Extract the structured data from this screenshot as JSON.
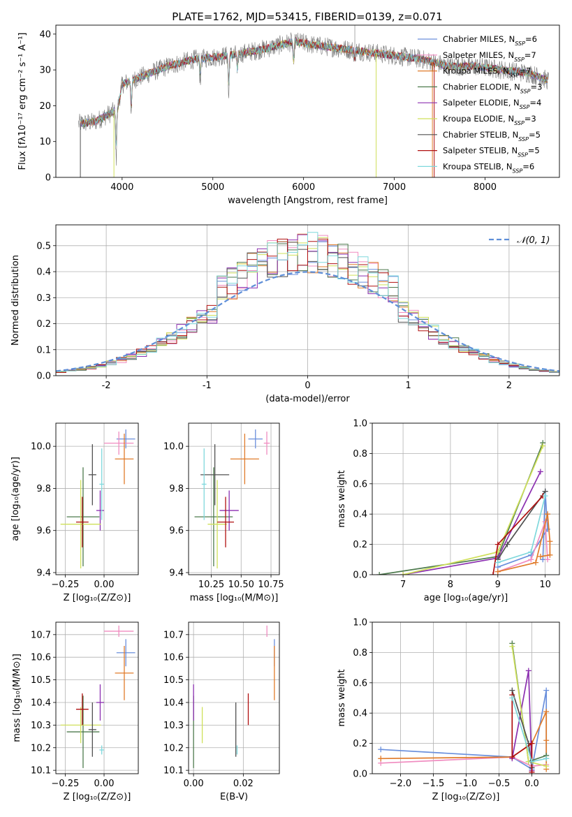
{
  "figure": {
    "title": "PLATE=1762, MJD=53415, FIBERID=0139, z=0.071"
  },
  "colors": {
    "chabrier_miles": "#6a8fdc",
    "salpeter_miles": "#f08cc0",
    "kroupa_miles": "#e07b2a",
    "chabrier_elodie": "#4d7a4d",
    "salpeter_elodie": "#8b2fb0",
    "kroupa_elodie": "#cfe05a",
    "chabrier_stelib": "#505050",
    "salpeter_stelib": "#b01010",
    "kroupa_stelib": "#7fd8dc",
    "normal_curve": "#5f8fd8",
    "grid": "#b0b0b0"
  },
  "chart_data": [
    {
      "id": "spectrum",
      "type": "line",
      "xlabel": "wavelength [Angstrom, rest frame]",
      "ylabel": "Flux [fλ10⁻¹⁷ erg cm⁻² s⁻¹ A⁻¹]",
      "xlim": [
        3270,
        8820
      ],
      "ylim": [
        0,
        42.5
      ],
      "xticks": [
        4000,
        5000,
        6000,
        7000,
        8000
      ],
      "yticks": [
        0,
        10,
        20,
        30,
        40
      ],
      "grid": false,
      "legend_loc": "upper right",
      "legend": [
        {
          "label": "Chabrier MILES, N_SSP=6",
          "base": "Chabrier MILES, N",
          "sub": "SSP",
          "tail": "=6",
          "color_key": "chabrier_miles"
        },
        {
          "label": "Salpeter MILES, N_SSP=7",
          "base": "Salpeter MILES, N",
          "sub": "SSP",
          "tail": "=7",
          "color_key": "salpeter_miles"
        },
        {
          "label": "Kroupa MILES, N_SSP=7",
          "base": "Kroupa MILES, N",
          "sub": "SSP",
          "tail": "=7",
          "color_key": "kroupa_miles"
        },
        {
          "label": "Chabrier ELODIE, N_SSP=3",
          "base": "Chabrier ELODIE, N",
          "sub": "SSP",
          "tail": "=3",
          "color_key": "chabrier_elodie"
        },
        {
          "label": "Salpeter ELODIE, N_SSP=4",
          "base": "Salpeter ELODIE, N",
          "sub": "SSP",
          "tail": "=4",
          "color_key": "salpeter_elodie"
        },
        {
          "label": "Kroupa ELODIE, N_SSP=3",
          "base": "Kroupa ELODIE, N",
          "sub": "SSP",
          "tail": "=3",
          "color_key": "kroupa_elodie"
        },
        {
          "label": "Chabrier STELIB, N_SSP=5",
          "base": "Chabrier STELIB, N",
          "sub": "SSP",
          "tail": "=5",
          "color_key": "chabrier_stelib"
        },
        {
          "label": "Salpeter STELIB, N_SSP=5",
          "base": "Salpeter STELIB, N",
          "sub": "SSP",
          "tail": "=5",
          "color_key": "salpeter_stelib"
        },
        {
          "label": "Kroupa STELIB, N_SSP=6",
          "base": "Kroupa STELIB, N",
          "sub": "SSP",
          "tail": "=6",
          "color_key": "kroupa_stelib"
        }
      ],
      "continuum": [
        [
          3520,
          15
        ],
        [
          3700,
          15.5
        ],
        [
          3950,
          19
        ],
        [
          4000,
          26
        ],
        [
          4200,
          28
        ],
        [
          4500,
          31
        ],
        [
          4800,
          33
        ],
        [
          5000,
          33.5
        ],
        [
          5300,
          34.5
        ],
        [
          5600,
          36
        ],
        [
          5900,
          38
        ],
        [
          6100,
          37
        ],
        [
          6400,
          36
        ],
        [
          6700,
          35
        ],
        [
          7000,
          34
        ],
        [
          7300,
          33
        ],
        [
          7600,
          31
        ],
        [
          7900,
          31
        ],
        [
          8200,
          30
        ],
        [
          8500,
          29
        ],
        [
          8700,
          27
        ]
      ],
      "absorption_features": [
        [
          3934,
          14
        ],
        [
          4102,
          10
        ],
        [
          4861,
          6
        ],
        [
          5175,
          12
        ],
        [
          5270,
          6
        ],
        [
          5890,
          8
        ],
        [
          6563,
          3
        ]
      ],
      "dropouts": [
        [
          3540,
          "chabrier_stelib"
        ],
        [
          3910,
          "kroupa_elodie"
        ],
        [
          6800,
          "kroupa_elodie"
        ],
        [
          7420,
          "kroupa_miles"
        ],
        [
          7440,
          "salpeter_stelib"
        ]
      ],
      "spike": 6565
    },
    {
      "id": "residuals",
      "type": "histogram",
      "xlabel": "(data-model)/error",
      "ylabel": "Normed distribution",
      "xlim": [
        -2.5,
        2.5
      ],
      "ylim": [
        0,
        0.58
      ],
      "xticks": [
        -2,
        -1,
        0,
        1,
        2
      ],
      "yticks": [
        0.0,
        0.1,
        0.2,
        0.3,
        0.4,
        0.5
      ],
      "ytick_labels": [
        "0.0",
        "0.1",
        "0.2",
        "0.3",
        "0.4",
        "0.5"
      ],
      "grid": true,
      "legend_loc": "upper right",
      "legend_label": "𝒩(0, 1)",
      "bin_width": 0.1,
      "curve": "standard normal density, dashed"
    },
    {
      "id": "z-age",
      "type": "scatter",
      "xlabel": "Z [log₁₀(Z/Z⊙)]",
      "ylabel": "age  [log₁₀(age/yr)]",
      "xlim": [
        -0.31,
        0.22
      ],
      "ylim": [
        9.39,
        10.11
      ],
      "xticks": [
        -0.25,
        0.0
      ],
      "xtick_labels": [
        "−0.25",
        "0.00"
      ],
      "yticks": [
        9.4,
        9.6,
        9.8,
        10.0
      ],
      "ytick_labels": [
        "9.4",
        "9.6",
        "9.8",
        "10.0"
      ],
      "grid": true
    },
    {
      "id": "mass-age",
      "type": "scatter",
      "xlabel": "mass [log₁₀(M/M⊙)]",
      "xlim": [
        10.06,
        10.82
      ],
      "ylim": [
        9.39,
        10.11
      ],
      "xticks": [
        10.25,
        10.5,
        10.75
      ],
      "xtick_labels": [
        "10.25",
        "10.50",
        "10.75"
      ],
      "yticks": [
        9.4,
        9.6,
        9.8,
        10.0
      ],
      "ytick_labels": [
        "9.4",
        "9.6",
        "9.8",
        "10.0"
      ],
      "grid": true
    },
    {
      "id": "age-weight",
      "type": "line",
      "xlabel": "age  [log₁₀(age/yr)]",
      "ylabel": "mass weight",
      "xlim": [
        6.35,
        10.3
      ],
      "ylim": [
        0,
        1.0
      ],
      "xticks": [
        7,
        8,
        9,
        10
      ],
      "yticks": [
        0.0,
        0.2,
        0.4,
        0.6,
        0.8,
        1.0
      ],
      "ytick_labels": [
        "0.0",
        "0.2",
        "0.4",
        "0.6",
        "0.8",
        "1.0"
      ],
      "grid": true
    },
    {
      "id": "z-mass",
      "type": "scatter",
      "xlabel": "Z [log₁₀(Z/Z⊙)]",
      "ylabel": "mass [log₁₀(M/M⊙)]",
      "xlim": [
        -0.31,
        0.22
      ],
      "ylim": [
        10.085,
        10.755
      ],
      "xticks": [
        -0.25,
        0.0
      ],
      "xtick_labels": [
        "−0.25",
        "0.00"
      ],
      "yticks": [
        10.1,
        10.2,
        10.3,
        10.4,
        10.5,
        10.6,
        10.7
      ],
      "ytick_labels": [
        "10.1",
        "10.2",
        "10.3",
        "10.4",
        "10.5",
        "10.6",
        "10.7"
      ],
      "grid": true
    },
    {
      "id": "ebv-mass",
      "type": "scatter",
      "xlabel": "E(B-V)",
      "xlim": [
        -0.002,
        0.0345
      ],
      "ylim": [
        10.085,
        10.755
      ],
      "xticks": [
        0.0,
        0.02
      ],
      "xtick_labels": [
        "0.00",
        "0.02"
      ],
      "yticks": [
        10.1,
        10.2,
        10.3,
        10.4,
        10.5,
        10.6,
        10.7
      ],
      "ytick_labels": [
        "10.1",
        "10.2",
        "10.3",
        "10.4",
        "10.5",
        "10.6",
        "10.7"
      ],
      "grid": true
    },
    {
      "id": "z-weight",
      "type": "line",
      "xlabel": "Z [log₁₀(Z/Z⊙)]",
      "ylabel": "mass weight",
      "xlim": [
        -2.43,
        0.42
      ],
      "ylim": [
        0,
        1.0
      ],
      "xticks": [
        -2.0,
        -1.5,
        -1.0,
        -0.5,
        0.0
      ],
      "xtick_labels": [
        "−2.0",
        "−1.5",
        "−1.0",
        "−0.5",
        "0.0"
      ],
      "yticks": [
        0.0,
        0.2,
        0.4,
        0.6,
        0.8,
        1.0
      ],
      "ytick_labels": [
        "0.0",
        "0.2",
        "0.4",
        "0.6",
        "0.8",
        "1.0"
      ],
      "grid": true
    }
  ],
  "models": [
    {
      "key": "chabrier_miles",
      "z": [
        0.08,
        0.2
      ],
      "age": [
        9.99,
        10.08
      ],
      "mass": [
        10.56,
        10.68
      ],
      "ebv": 0.0325,
      "age_weight": [
        [
          9.95,
          0.1
        ],
        [
          10.0,
          0.55
        ],
        [
          10.05,
          0.3
        ],
        [
          9.7,
          0.13
        ],
        [
          9.0,
          0.05
        ]
      ],
      "z_weight": [
        [
          -2.3,
          0.16
        ],
        [
          -0.3,
          0.11
        ],
        [
          0.0,
          0.03
        ],
        [
          0.22,
          0.55
        ],
        [
          0.22,
          0.1
        ]
      ]
    },
    {
      "key": "salpeter_miles",
      "z": [
        0.0,
        0.19
      ],
      "age": [
        9.96,
        10.07
      ],
      "mass": [
        10.69,
        10.74
      ],
      "ebv": 0.0295,
      "age_weight": [
        [
          9.0,
          0.02
        ],
        [
          9.7,
          0.1
        ],
        [
          10.0,
          0.35
        ],
        [
          10.05,
          0.1
        ]
      ],
      "z_weight": [
        [
          -2.3,
          0.07
        ],
        [
          -0.3,
          0.11
        ],
        [
          0.0,
          0.05
        ],
        [
          0.22,
          0.06
        ]
      ]
    },
    {
      "key": "kroupa_miles",
      "z": [
        0.07,
        0.19
      ],
      "age": [
        9.82,
        10.06
      ],
      "mass": [
        10.41,
        10.65
      ],
      "ebv": 0.0325,
      "age_weight": [
        [
          9.0,
          0.02
        ],
        [
          9.8,
          0.08
        ],
        [
          10.05,
          0.4
        ],
        [
          10.1,
          0.22
        ],
        [
          10.1,
          0.13
        ],
        [
          9.9,
          0.12
        ]
      ],
      "z_weight": [
        [
          -2.3,
          0.1
        ],
        [
          -0.3,
          0.11
        ],
        [
          0.0,
          0.2
        ],
        [
          0.22,
          0.41
        ],
        [
          0.22,
          0.22
        ],
        [
          0.22,
          0.03
        ]
      ]
    },
    {
      "key": "chabrier_elodie",
      "z": [
        -0.24,
        -0.03
      ],
      "age": [
        9.43,
        9.9
      ],
      "mass": [
        10.11,
        10.43
      ],
      "ebv": 0.0,
      "age_weight": [
        [
          6.5,
          0.0
        ],
        [
          9.0,
          0.12
        ],
        [
          9.95,
          0.87
        ]
      ],
      "z_weight": [
        [
          -0.3,
          0.86
        ],
        [
          -0.05,
          0.08
        ],
        [
          0.22,
          0.12
        ]
      ]
    },
    {
      "key": "salpeter_elodie",
      "z": [
        -0.05,
        0.0
      ],
      "age": [
        9.6,
        9.79
      ],
      "mass": [
        10.32,
        10.48
      ],
      "ebv": 0.0,
      "age_weight": [
        [
          7.0,
          0.0
        ],
        [
          9.0,
          0.11
        ],
        [
          9.9,
          0.68
        ]
      ],
      "z_weight": [
        [
          -0.3,
          0.1
        ],
        [
          -0.05,
          0.68
        ],
        [
          0.0,
          0.02
        ]
      ]
    },
    {
      "key": "kroupa_elodie",
      "z": [
        -0.28,
        -0.02
      ],
      "age": [
        9.42,
        9.84
      ],
      "mass": [
        10.22,
        10.38
      ],
      "ebv": 0.0035,
      "age_weight": [
        [
          7.0,
          0.0
        ],
        [
          9.0,
          0.15
        ],
        [
          9.95,
          0.85
        ]
      ],
      "z_weight": [
        [
          -0.3,
          0.84
        ],
        [
          -0.05,
          0.08
        ],
        [
          0.22,
          0.05
        ]
      ]
    },
    {
      "key": "chabrier_stelib",
      "z": [
        -0.1,
        -0.05
      ],
      "age": [
        9.72,
        10.01
      ],
      "mass": [
        10.16,
        10.4
      ],
      "ebv": 0.017,
      "age_weight": [
        [
          9.0,
          0.1
        ],
        [
          9.2,
          0.2
        ],
        [
          10.0,
          0.55
        ]
      ],
      "z_weight": [
        [
          -0.3,
          0.55
        ],
        [
          -0.05,
          0.2
        ],
        [
          0.0,
          0.04
        ]
      ]
    },
    {
      "key": "salpeter_stelib",
      "z": [
        -0.18,
        -0.1
      ],
      "age": [
        9.52,
        9.76
      ],
      "mass": [
        10.3,
        10.44
      ],
      "ebv": 0.022,
      "age_weight": [
        [
          8.9,
          0.0
        ],
        [
          9.0,
          0.2
        ],
        [
          9.95,
          0.52
        ]
      ],
      "z_weight": [
        [
          -0.3,
          0.52
        ],
        [
          -0.3,
          0.11
        ],
        [
          0.0,
          0.2
        ],
        [
          0.0,
          0.01
        ]
      ]
    },
    {
      "key": "kroupa_stelib",
      "z": [
        -0.03,
        0.0
      ],
      "age": [
        9.65,
        9.99
      ],
      "mass": [
        10.17,
        10.21
      ],
      "ebv": 0.0175,
      "age_weight": [
        [
          9.0,
          0.08
        ],
        [
          9.7,
          0.15
        ],
        [
          10.0,
          0.52
        ]
      ],
      "z_weight": [
        [
          -0.3,
          0.5
        ],
        [
          0.0,
          0.08
        ],
        [
          0.22,
          0.1
        ]
      ]
    }
  ]
}
